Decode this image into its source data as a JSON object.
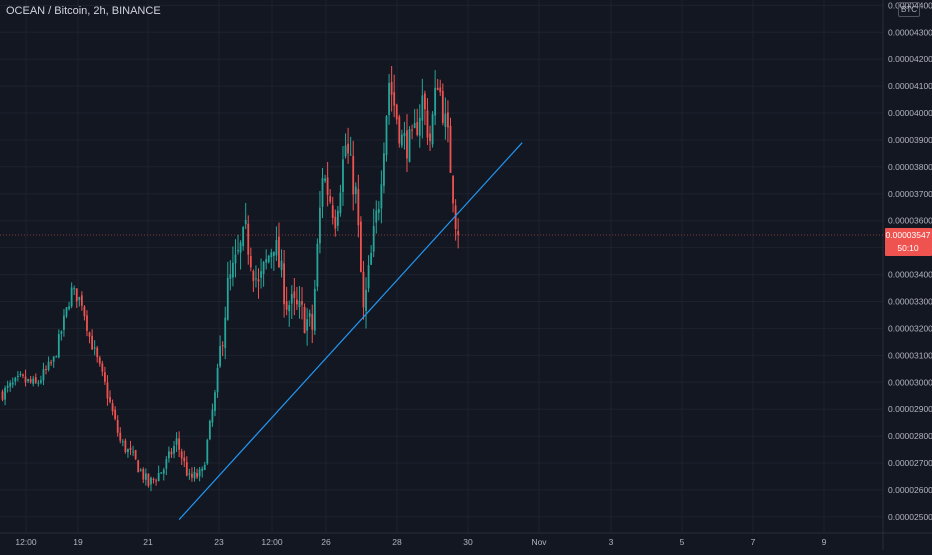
{
  "header": {
    "title": "OCEAN / Bitcoin, 2h, BINANCE",
    "currency": "BTC"
  },
  "price_tag": {
    "price": "0.00003547",
    "countdown": "50:10",
    "color": "#ef5350"
  },
  "colors": {
    "background": "#131722",
    "up": "#26a69a",
    "down": "#ef5350",
    "trendline": "#2196f3",
    "axis_text": "#b2b5be"
  },
  "chart_data": {
    "type": "candlestick",
    "title": "OCEAN / Bitcoin, 2h, BINANCE",
    "ylim": [
      2.44e-05,
      4.42e-05
    ],
    "y_ticks": [
      "0.00002500",
      "0.00002600",
      "0.00002700",
      "0.00002800",
      "0.00002900",
      "0.00003000",
      "0.00003100",
      "0.00003200",
      "0.00003300",
      "0.00003400",
      "0.00003500",
      "0.00003600",
      "0.00003700",
      "0.00003800",
      "0.00003900",
      "0.00004000",
      "0.00004100",
      "0.00004200",
      "0.00004300",
      "0.00004400"
    ],
    "x_ticks": [
      "12:00",
      "19",
      "21",
      "23",
      "12:00",
      "26",
      "28",
      "30",
      "Nov",
      "3",
      "5",
      "7",
      "9"
    ],
    "last_price": 3.547e-05,
    "price_anchors": [
      [
        0,
        2.96e-05
      ],
      [
        7,
        3.01e-05
      ],
      [
        13,
        2.99e-05
      ],
      [
        20,
        3.08e-05
      ],
      [
        27,
        3.34e-05
      ],
      [
        31,
        3.3e-05
      ],
      [
        34,
        3.17e-05
      ],
      [
        40,
        2.99e-05
      ],
      [
        46,
        2.78e-05
      ],
      [
        51,
        2.72e-05
      ],
      [
        57,
        2.62e-05
      ],
      [
        63,
        2.68e-05
      ],
      [
        68,
        2.78e-05
      ],
      [
        73,
        2.64e-05
      ],
      [
        78,
        2.66e-05
      ],
      [
        83,
        2.95e-05
      ],
      [
        88,
        3.35e-05
      ],
      [
        95,
        3.55e-05
      ],
      [
        100,
        3.35e-05
      ],
      [
        106,
        3.53e-05
      ],
      [
        111,
        3.3e-05
      ],
      [
        117,
        3.25e-05
      ],
      [
        121,
        3.2e-05
      ],
      [
        125,
        3.78e-05
      ],
      [
        130,
        3.62e-05
      ],
      [
        134,
        3.88e-05
      ],
      [
        138,
        3.7e-05
      ],
      [
        141,
        3.25e-05
      ],
      [
        147,
        3.68e-05
      ],
      [
        151,
        4.12e-05
      ],
      [
        156,
        3.9e-05
      ],
      [
        160,
        3.88e-05
      ],
      [
        164,
        4.05e-05
      ],
      [
        167,
        3.9e-05
      ],
      [
        170,
        4.13e-05
      ],
      [
        174,
        3.9e-05
      ],
      [
        178,
        3.52e-05
      ]
    ],
    "trendline": {
      "start": {
        "bar": 69,
        "value": 2.49e-05
      },
      "end": {
        "bar": 203,
        "value": 3.89e-05
      }
    },
    "xlabel": "",
    "ylabel": ""
  }
}
